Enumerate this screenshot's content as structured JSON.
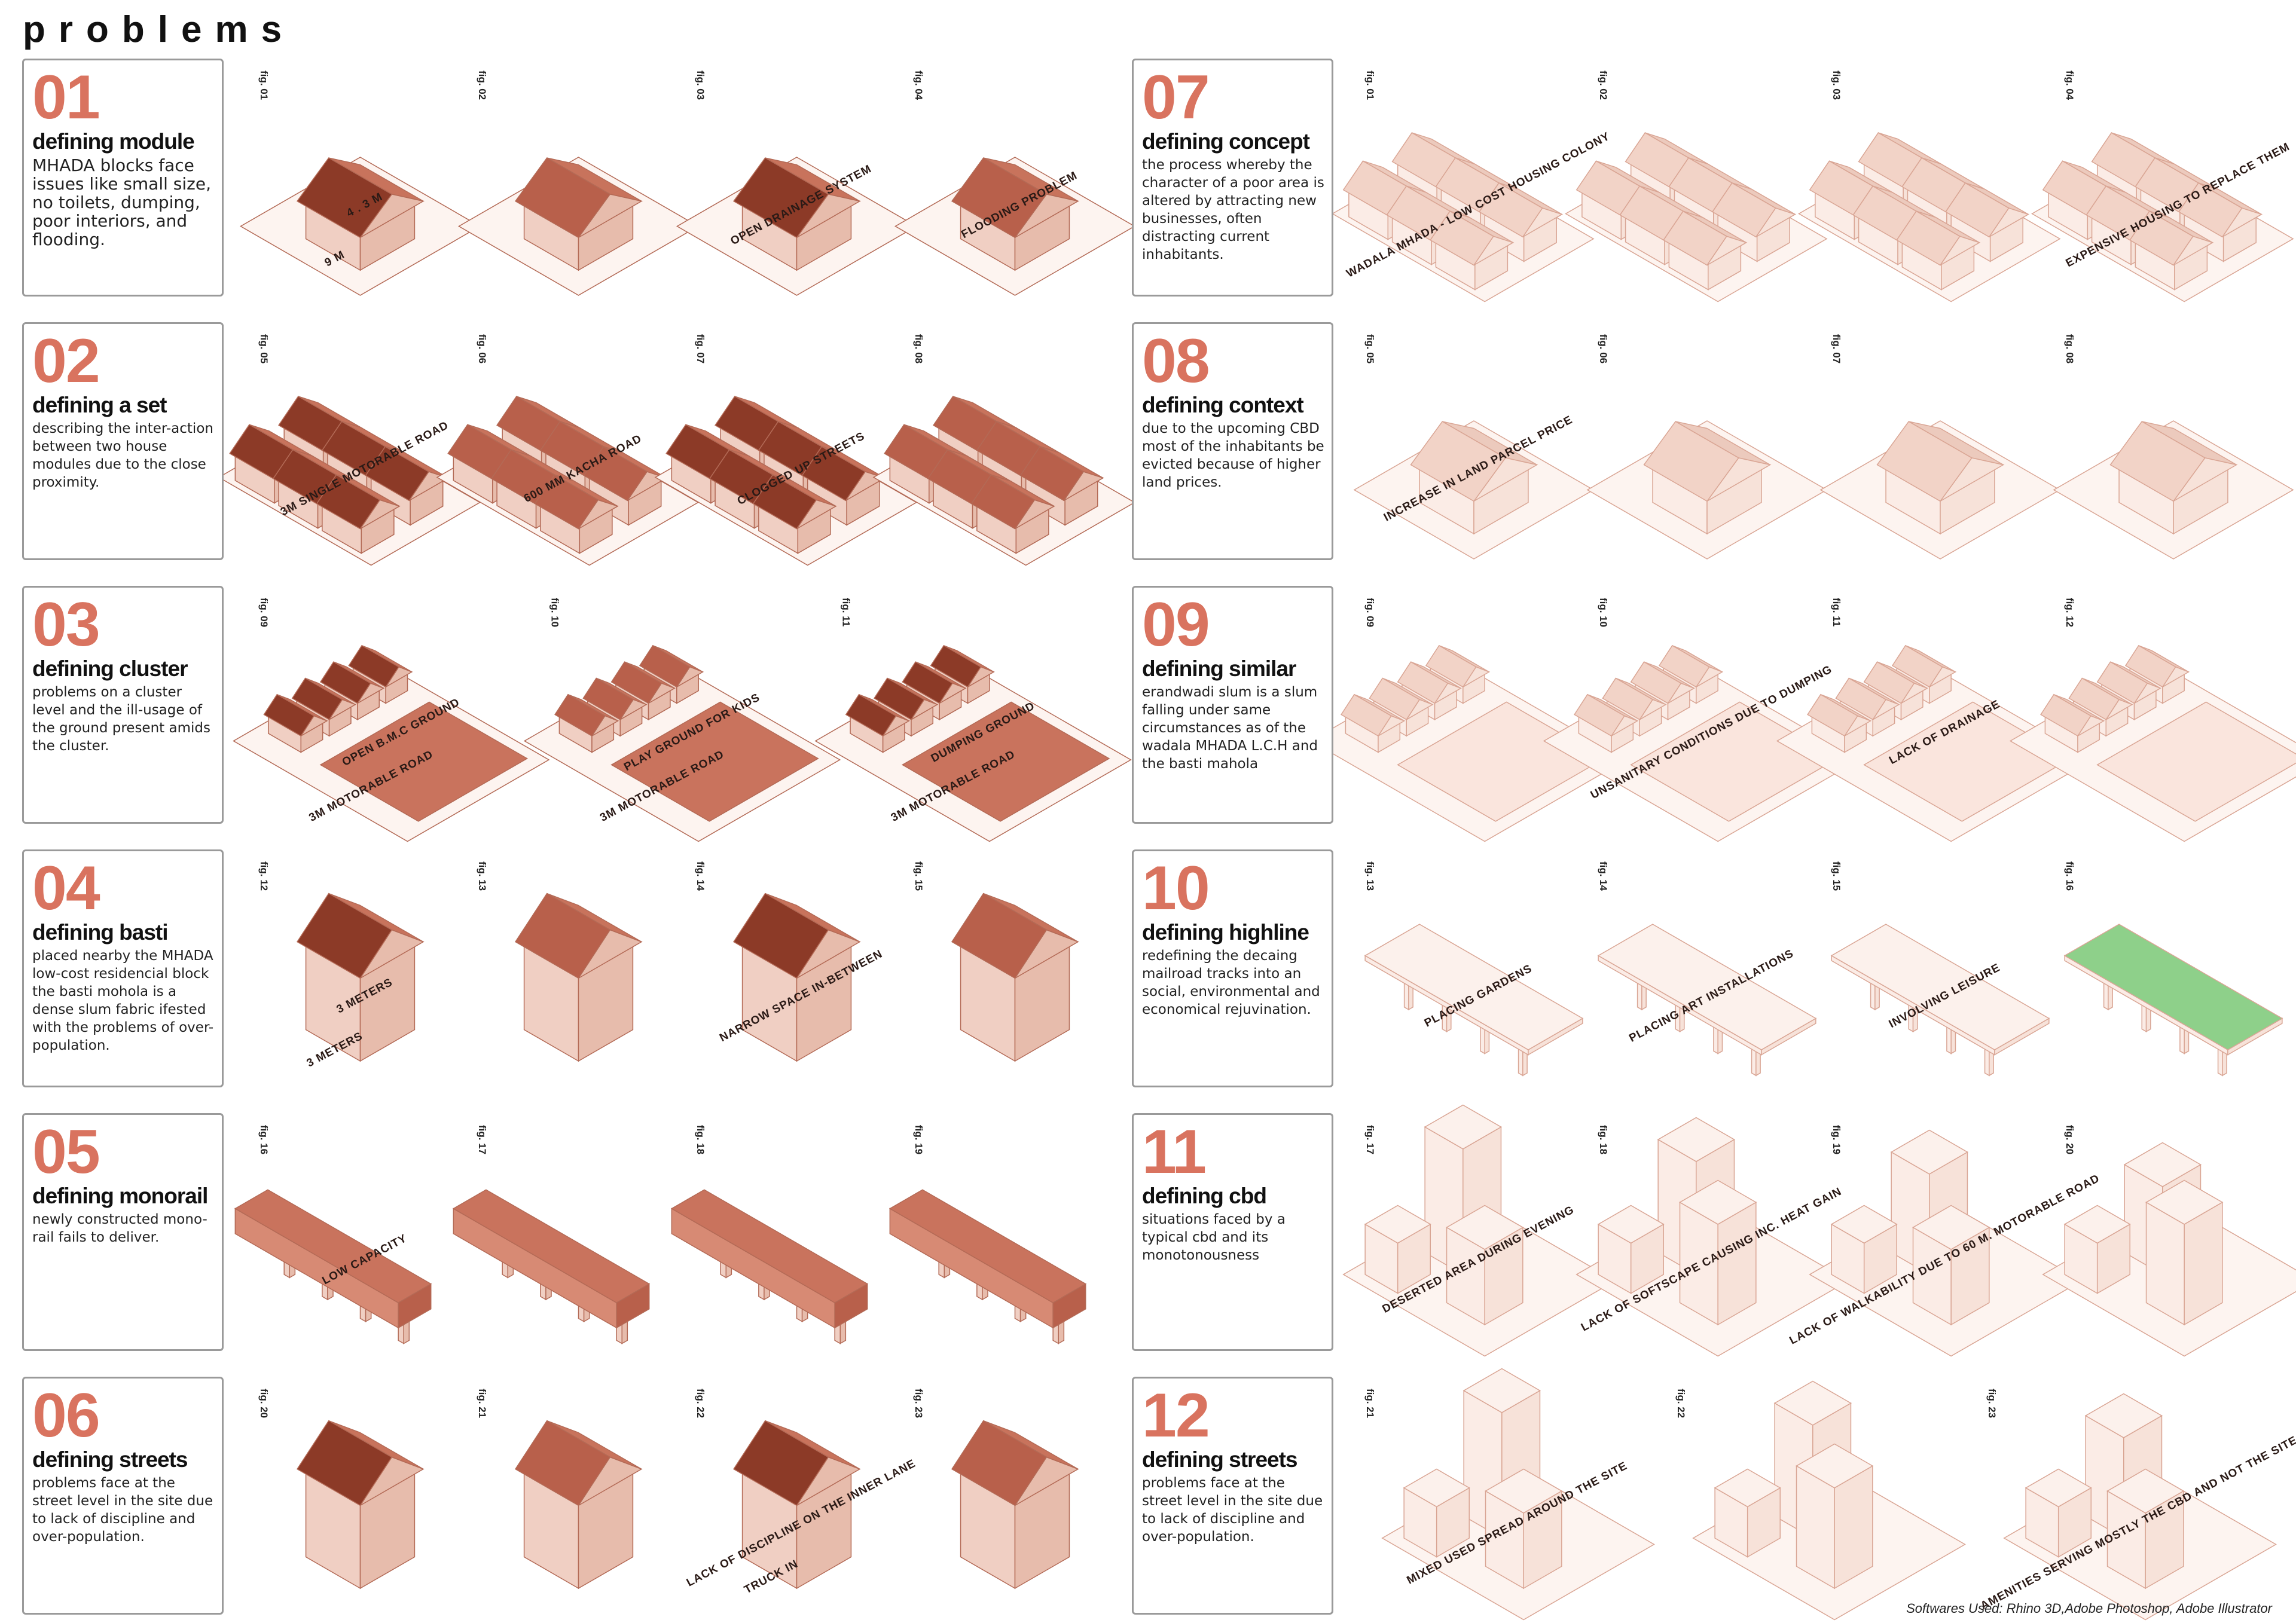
{
  "header": {
    "title": "problems"
  },
  "sections": [
    {
      "number": "01",
      "title": "defining module",
      "description": "MHADA blocks face issues like small size, no toilets, dumping, poor interiors, and flooding.",
      "figures": [
        {
          "label": "fig. 01",
          "notes": [
            "4 . 3 M",
            "9 M"
          ]
        },
        {
          "label": "fig. 02"
        },
        {
          "label": "fig. 03",
          "notes": [
            "OPEN DRAINAGE SYSTEM"
          ]
        },
        {
          "label": "fig. 04",
          "notes": [
            "FLOODING PROBLEM"
          ]
        }
      ]
    },
    {
      "number": "02",
      "title": "defining a set",
      "description": "describing the inter-action between two house modules due to the close proximity.",
      "figures": [
        {
          "label": "fig. 05",
          "notes": [
            "3M SINGLE MOTORABLE ROAD"
          ]
        },
        {
          "label": "fig. 06",
          "notes": [
            "600 MM KACHA ROAD"
          ]
        },
        {
          "label": "fig. 07",
          "notes": [
            "CLOGGED UP STREETS"
          ]
        },
        {
          "label": "fig. 08"
        }
      ]
    },
    {
      "number": "03",
      "title": "defining cluster",
      "description": "problems on a cluster level and the ill-usage of the ground present amids the cluster.",
      "figures": [
        {
          "label": "fig. 09",
          "notes": [
            "OPEN B.M.C GROUND",
            "3M MOTORABLE ROAD"
          ]
        },
        {
          "label": "fig. 10",
          "notes": [
            "PLAY GROUND FOR KIDS",
            "3M MOTORABLE ROAD"
          ]
        },
        {
          "label": "fig. 11",
          "notes": [
            "DUMPING GROUND",
            "3M MOTORABLE ROAD"
          ]
        }
      ]
    },
    {
      "number": "04",
      "title": "defining basti",
      "description": "placed nearby the MHADA low-cost residencial block the basti mohola is a dense slum fabric ifested with  the  problems of over-population.",
      "figures": [
        {
          "label": "fig. 12",
          "notes": [
            "3 METERS",
            "3 METERS"
          ]
        },
        {
          "label": "fig. 13"
        },
        {
          "label": "fig. 14",
          "notes": [
            "NARROW SPACE IN-BETWEEN"
          ]
        },
        {
          "label": "fig. 15"
        }
      ]
    },
    {
      "number": "05",
      "title": "defining monorail",
      "description": "newly constructed mono-rail fails to deliver.",
      "figures": [
        {
          "label": "fig. 16",
          "notes": [
            "LOW CAPACITY"
          ]
        },
        {
          "label": "fig. 17"
        },
        {
          "label": "fig. 18"
        },
        {
          "label": "fig. 19"
        }
      ]
    },
    {
      "number": "06",
      "title": "defining streets",
      "description": "problems face at the street level in the site due to lack of discipline and over-population.",
      "figures": [
        {
          "label": "fig. 20"
        },
        {
          "label": "fig. 21"
        },
        {
          "label": "fig. 22",
          "notes": [
            "LACK OF DISCIPLINE ON THE INNER LANE",
            "TRUCK IN"
          ]
        },
        {
          "label": "fig. 23"
        }
      ]
    },
    {
      "number": "07",
      "title": "defining concept",
      "description": "the process whereby the character of a poor area is altered by attracting new businesses, often distracting current inhabitants.",
      "figures": [
        {
          "label": "fig. 01",
          "notes": [
            "WADALA MHADA - LOW COST HOUSING COLONY"
          ]
        },
        {
          "label": "fig. 02"
        },
        {
          "label": "fig. 03"
        },
        {
          "label": "fig. 04",
          "notes": [
            "EXPENSIVE HOUSING TO REPLACE THEM"
          ]
        }
      ]
    },
    {
      "number": "08",
      "title": "defining context",
      "description": "due to the upcoming CBD most of the inhabitants be evicted because of higher land prices.",
      "figures": [
        {
          "label": "fig. 05",
          "notes": [
            "INCREASE IN LAND PARCEL PRICE"
          ]
        },
        {
          "label": "fig. 06"
        },
        {
          "label": "fig. 07"
        },
        {
          "label": "fig. 08"
        }
      ]
    },
    {
      "number": "09",
      "title": "defining similar",
      "description": "erandwadi slum is a slum falling under same circumstances as of the wadala MHADA L.C.H and the basti mahola",
      "figures": [
        {
          "label": "fig. 09"
        },
        {
          "label": "fig. 10",
          "notes": [
            "UNSANITARY CONDITIONS DUE TO DUMPING"
          ]
        },
        {
          "label": "fig. 11",
          "notes": [
            "LACK OF DRAINAGE"
          ]
        },
        {
          "label": "fig. 12"
        }
      ]
    },
    {
      "number": "10",
      "title": "defining highline",
      "description": "redefining the decaing mailroad tracks into an social, environmental and economical rejuvination.",
      "figures": [
        {
          "label": "fig. 13",
          "notes": [
            "PLACING GARDENS"
          ]
        },
        {
          "label": "fig. 14",
          "notes": [
            "PLACING ART INSTALLATIONS"
          ]
        },
        {
          "label": "fig. 15",
          "notes": [
            "INVOLVING LEISURE"
          ]
        },
        {
          "label": "fig. 16"
        }
      ]
    },
    {
      "number": "11",
      "title": "defining cbd",
      "description": "situations faced by a typical cbd and its monotonousness",
      "figures": [
        {
          "label": "fig. 17",
          "notes": [
            "DESERTED AREA DURING EVENING"
          ]
        },
        {
          "label": "fig. 18",
          "notes": [
            "LACK OF SOFTSCAPE CAUSING INC. HEAT GAIN"
          ]
        },
        {
          "label": "fig. 19",
          "notes": [
            "LACK OF WALKABILITY DUE TO 60 M. MOTORABLE ROAD"
          ]
        },
        {
          "label": "fig. 20"
        }
      ]
    },
    {
      "number": "12",
      "title": "defining streets",
      "description": "problems face at the street level in the site due to lack of discipline and over-population.",
      "figures": [
        {
          "label": "fig. 21",
          "notes": [
            "MIXED USED SPREAD AROUND THE SITE"
          ]
        },
        {
          "label": "fig. 22"
        },
        {
          "label": "fig. 23",
          "notes": [
            "AMENITIES SERVING MOSTLY THE CBD AND NOT THE SITE"
          ]
        }
      ]
    }
  ],
  "footer": "Softwares Used: Rhino 3D,Adobe Photoshop, Adobe Illustrator"
}
